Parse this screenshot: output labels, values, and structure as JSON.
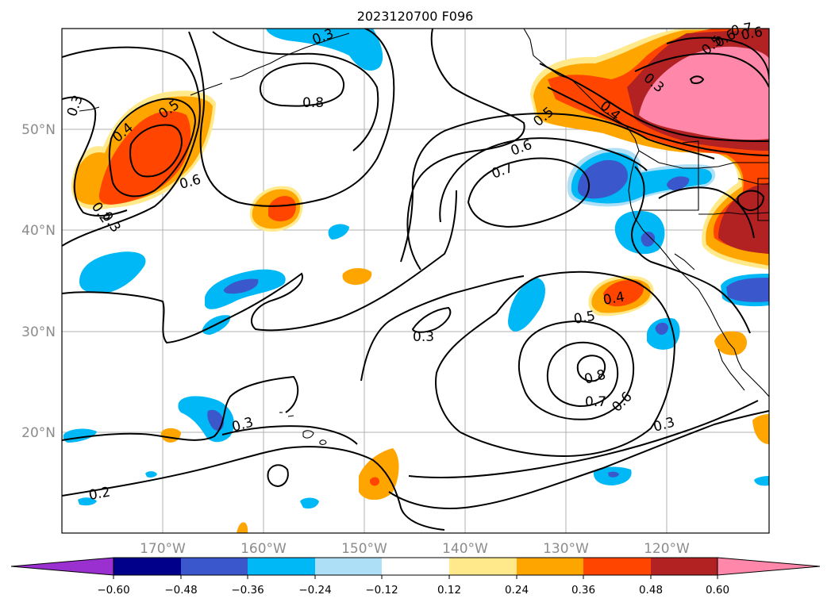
{
  "title": "2023120700 F096",
  "colors": {
    "purple": "#9a30d0",
    "navy": "#00008b",
    "blue": "#3a58cc",
    "deepsky": "#00b8f5",
    "lightblue": "#ade0f7",
    "white": "#ffffff",
    "lightyellow": "#ffe98a",
    "orange": "#ffa500",
    "orangered": "#ff4500",
    "firebrick": "#b22222",
    "pink": "#ff88aa"
  },
  "lat_labels": [
    "50°N",
    "40°N",
    "30°N",
    "20°N"
  ],
  "lon_labels": [
    "170°W",
    "160°W",
    "150°W",
    "140°W",
    "130°W",
    "120°W"
  ],
  "colorbar": {
    "ticks": [
      "−0.60",
      "−0.48",
      "−0.36",
      "−0.24",
      "−0.12",
      "0.12",
      "0.24",
      "0.36",
      "0.48",
      "0.60"
    ]
  },
  "contour_labels": [
    "0.3",
    "0.4",
    "0.5",
    "0.2",
    "0.6",
    "0.8",
    "0.3",
    "0.7",
    "0.6",
    "0.5",
    "0.6",
    "0.5",
    "0.4",
    "0.3",
    "0.4",
    "0.3",
    "0.5",
    "0.8",
    "0.7",
    "0.6",
    "0.3",
    "0.3",
    "0.2",
    "0.6",
    "0.7",
    "0.3"
  ]
}
